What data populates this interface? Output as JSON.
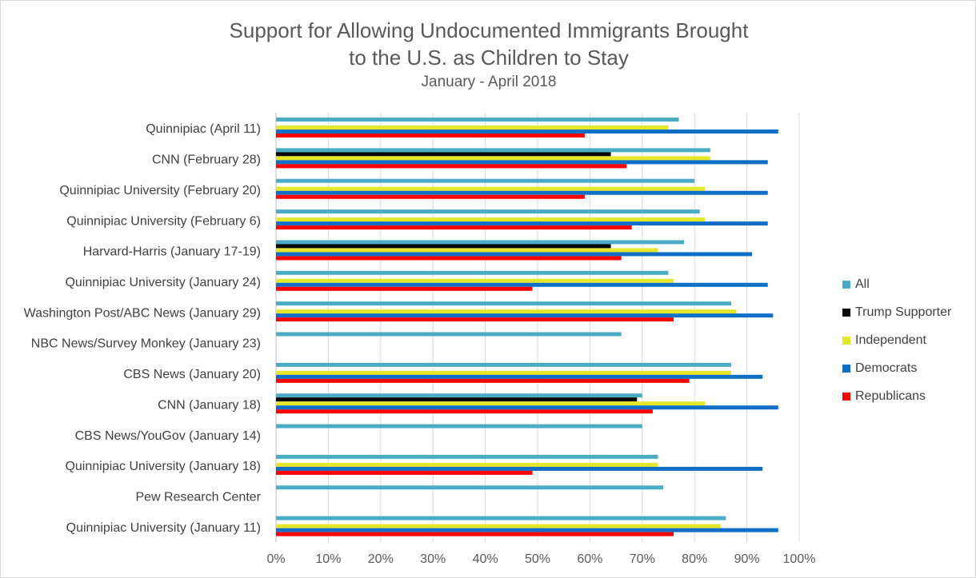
{
  "chart_data": {
    "type": "bar",
    "orientation": "horizontal",
    "title_lines": [
      "Support for Allowing Undocumented Immigrants Brought",
      "to the U.S. as Children to Stay"
    ],
    "subtitle": "January - April 2018",
    "xlim": [
      0,
      100
    ],
    "x_ticks": [
      "0%",
      "10%",
      "20%",
      "30%",
      "40%",
      "50%",
      "60%",
      "70%",
      "80%",
      "90%",
      "100%"
    ],
    "grid": "vertical",
    "legend_position": "right",
    "categories": [
      "Quinnipiac (April 11)",
      "CNN (February 28)",
      "Quinnipiac University (February 20)",
      "Quinnipiac University (February 6)",
      "Harvard-Harris (January 17-19)",
      "Quinnipiac University (January 24)",
      "Washington Post/ABC News (January 29)",
      "NBC News/Survey Monkey (January 23)",
      "CBS News (January 20)",
      "CNN (January 18)",
      "CBS News/YouGov (January 14)",
      "Quinnipiac University (January 18)",
      "Pew Research Center",
      "Quinnipiac University (January 11)"
    ],
    "series": [
      {
        "name": "All",
        "color": "#4bacc6",
        "values": [
          77,
          83,
          80,
          81,
          78,
          75,
          87,
          66,
          87,
          70,
          70,
          73,
          74,
          86
        ]
      },
      {
        "name": "Trump Supporter",
        "color": "#000000",
        "values": [
          null,
          64,
          null,
          null,
          64,
          null,
          null,
          null,
          null,
          69,
          null,
          null,
          null,
          null
        ]
      },
      {
        "name": "Independent",
        "color": "#e6e62a",
        "values": [
          75,
          83,
          82,
          82,
          73,
          76,
          88,
          null,
          87,
          82,
          null,
          73,
          null,
          85
        ]
      },
      {
        "name": "Democrats",
        "color": "#0f6fc6",
        "values": [
          96,
          94,
          94,
          94,
          91,
          94,
          95,
          null,
          93,
          96,
          null,
          93,
          null,
          96
        ]
      },
      {
        "name": "Republicans",
        "color": "#ff0000",
        "values": [
          59,
          67,
          59,
          68,
          66,
          49,
          76,
          null,
          79,
          72,
          null,
          49,
          null,
          76
        ]
      }
    ]
  }
}
